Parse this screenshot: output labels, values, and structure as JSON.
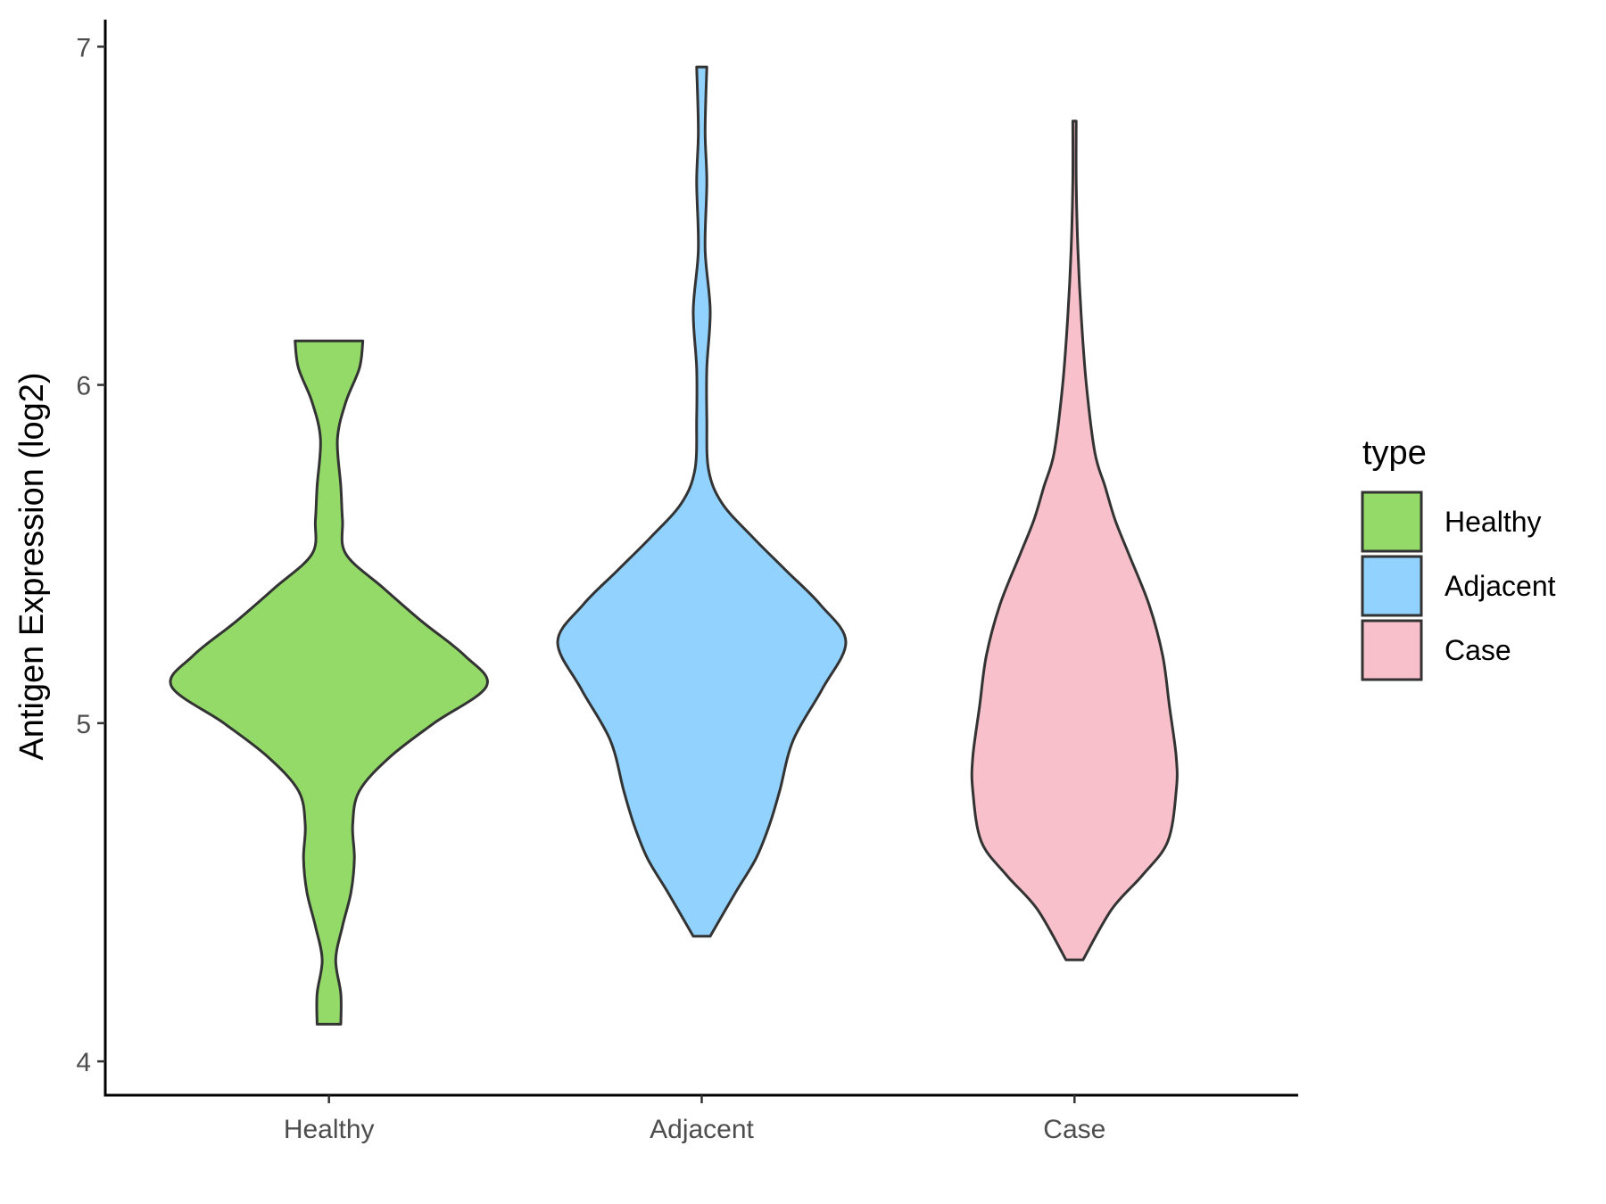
{
  "chart_data": {
    "type": "violin",
    "ylabel": "Antigen Expression (log2)",
    "xlabel": "",
    "ylim": [
      3.9,
      7.08
    ],
    "y_ticks": [
      4,
      5,
      6,
      7
    ],
    "categories": [
      "Healthy",
      "Adjacent",
      "Case"
    ],
    "grid": false,
    "legend": {
      "title": "type",
      "position": "right",
      "entries": [
        {
          "label": "Healthy",
          "color": "#93DA69"
        },
        {
          "label": "Adjacent",
          "color": "#92D2FE"
        },
        {
          "label": "Case",
          "color": "#F8C0CB"
        }
      ]
    },
    "series": [
      {
        "category": "Healthy",
        "color": "#93DA69",
        "min": 4.11,
        "max": 6.13,
        "density": [
          [
            4.11,
            0.07
          ],
          [
            4.2,
            0.07
          ],
          [
            4.3,
            0.04
          ],
          [
            4.4,
            0.08
          ],
          [
            4.5,
            0.13
          ],
          [
            4.6,
            0.15
          ],
          [
            4.7,
            0.14
          ],
          [
            4.8,
            0.18
          ],
          [
            4.9,
            0.36
          ],
          [
            5.0,
            0.62
          ],
          [
            5.11,
            0.93
          ],
          [
            5.2,
            0.8
          ],
          [
            5.3,
            0.55
          ],
          [
            5.4,
            0.32
          ],
          [
            5.5,
            0.1
          ],
          [
            5.6,
            0.08
          ],
          [
            5.7,
            0.07
          ],
          [
            5.84,
            0.05
          ],
          [
            5.95,
            0.1
          ],
          [
            6.05,
            0.18
          ],
          [
            6.13,
            0.2
          ]
        ]
      },
      {
        "category": "Adjacent",
        "color": "#92D2FE",
        "min": 4.37,
        "max": 6.94,
        "density": [
          [
            4.37,
            0.05
          ],
          [
            4.5,
            0.2
          ],
          [
            4.6,
            0.32
          ],
          [
            4.7,
            0.4
          ],
          [
            4.8,
            0.46
          ],
          [
            4.95,
            0.54
          ],
          [
            5.1,
            0.71
          ],
          [
            5.24,
            0.85
          ],
          [
            5.35,
            0.7
          ],
          [
            5.45,
            0.5
          ],
          [
            5.55,
            0.3
          ],
          [
            5.65,
            0.12
          ],
          [
            5.75,
            0.04
          ],
          [
            5.9,
            0.03
          ],
          [
            6.05,
            0.03
          ],
          [
            6.22,
            0.05
          ],
          [
            6.4,
            0.02
          ],
          [
            6.6,
            0.03
          ],
          [
            6.75,
            0.02
          ],
          [
            6.94,
            0.03
          ]
        ]
      },
      {
        "category": "Case",
        "color": "#F8C0CB",
        "min": 4.3,
        "max": 6.78,
        "density": [
          [
            4.3,
            0.05
          ],
          [
            4.45,
            0.22
          ],
          [
            4.55,
            0.4
          ],
          [
            4.65,
            0.55
          ],
          [
            4.8,
            0.6
          ],
          [
            4.9,
            0.6
          ],
          [
            5.05,
            0.56
          ],
          [
            5.2,
            0.52
          ],
          [
            5.35,
            0.44
          ],
          [
            5.5,
            0.32
          ],
          [
            5.6,
            0.24
          ],
          [
            5.7,
            0.18
          ],
          [
            5.8,
            0.12
          ],
          [
            6.0,
            0.07
          ],
          [
            6.2,
            0.04
          ],
          [
            6.4,
            0.02
          ],
          [
            6.6,
            0.01
          ],
          [
            6.78,
            0.01
          ]
        ]
      }
    ]
  }
}
